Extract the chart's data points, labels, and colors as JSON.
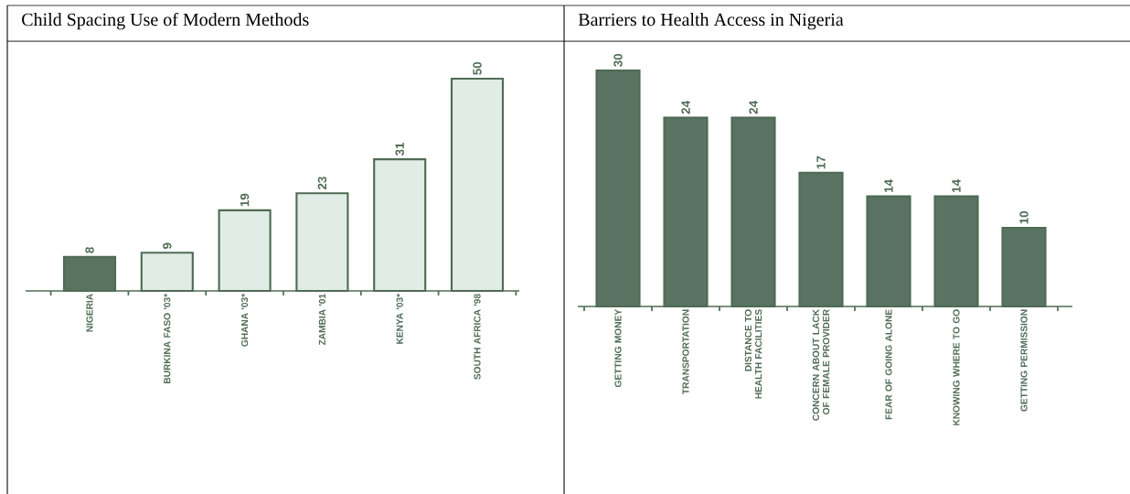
{
  "chart_data": [
    {
      "type": "bar",
      "title": "Child Spacing Use of Modern Methods",
      "categories": [
        "NIGERIA",
        "BURKINA FASO '03*",
        "GHANA '03*",
        "ZAMBIA '01",
        "KENYA '03*",
        "SOUTH AFRICA '98"
      ],
      "values": [
        8,
        9,
        19,
        23,
        31,
        50
      ],
      "colors": [
        "#5a7360",
        "#e2ece6",
        "#e2ece6",
        "#e2ece6",
        "#e2ece6",
        "#e2ece6"
      ],
      "data_labels": true
    },
    {
      "type": "bar",
      "title": "Barriers to Health Access in Nigeria",
      "categories": [
        "GETTING MONEY",
        "TRANSPORTATION",
        "DISTANCE TO HEALTH FACILITIES",
        "CONCERN ABOUT LACK OF FEMALE PROVIDER",
        "FEAR OF GOING ALONE",
        "KNOWING WHERE TO GO",
        "GETTING PERMISSION"
      ],
      "values": [
        30,
        24,
        24,
        17,
        14,
        14,
        10
      ],
      "color": "#5a7362",
      "data_labels": true
    }
  ]
}
